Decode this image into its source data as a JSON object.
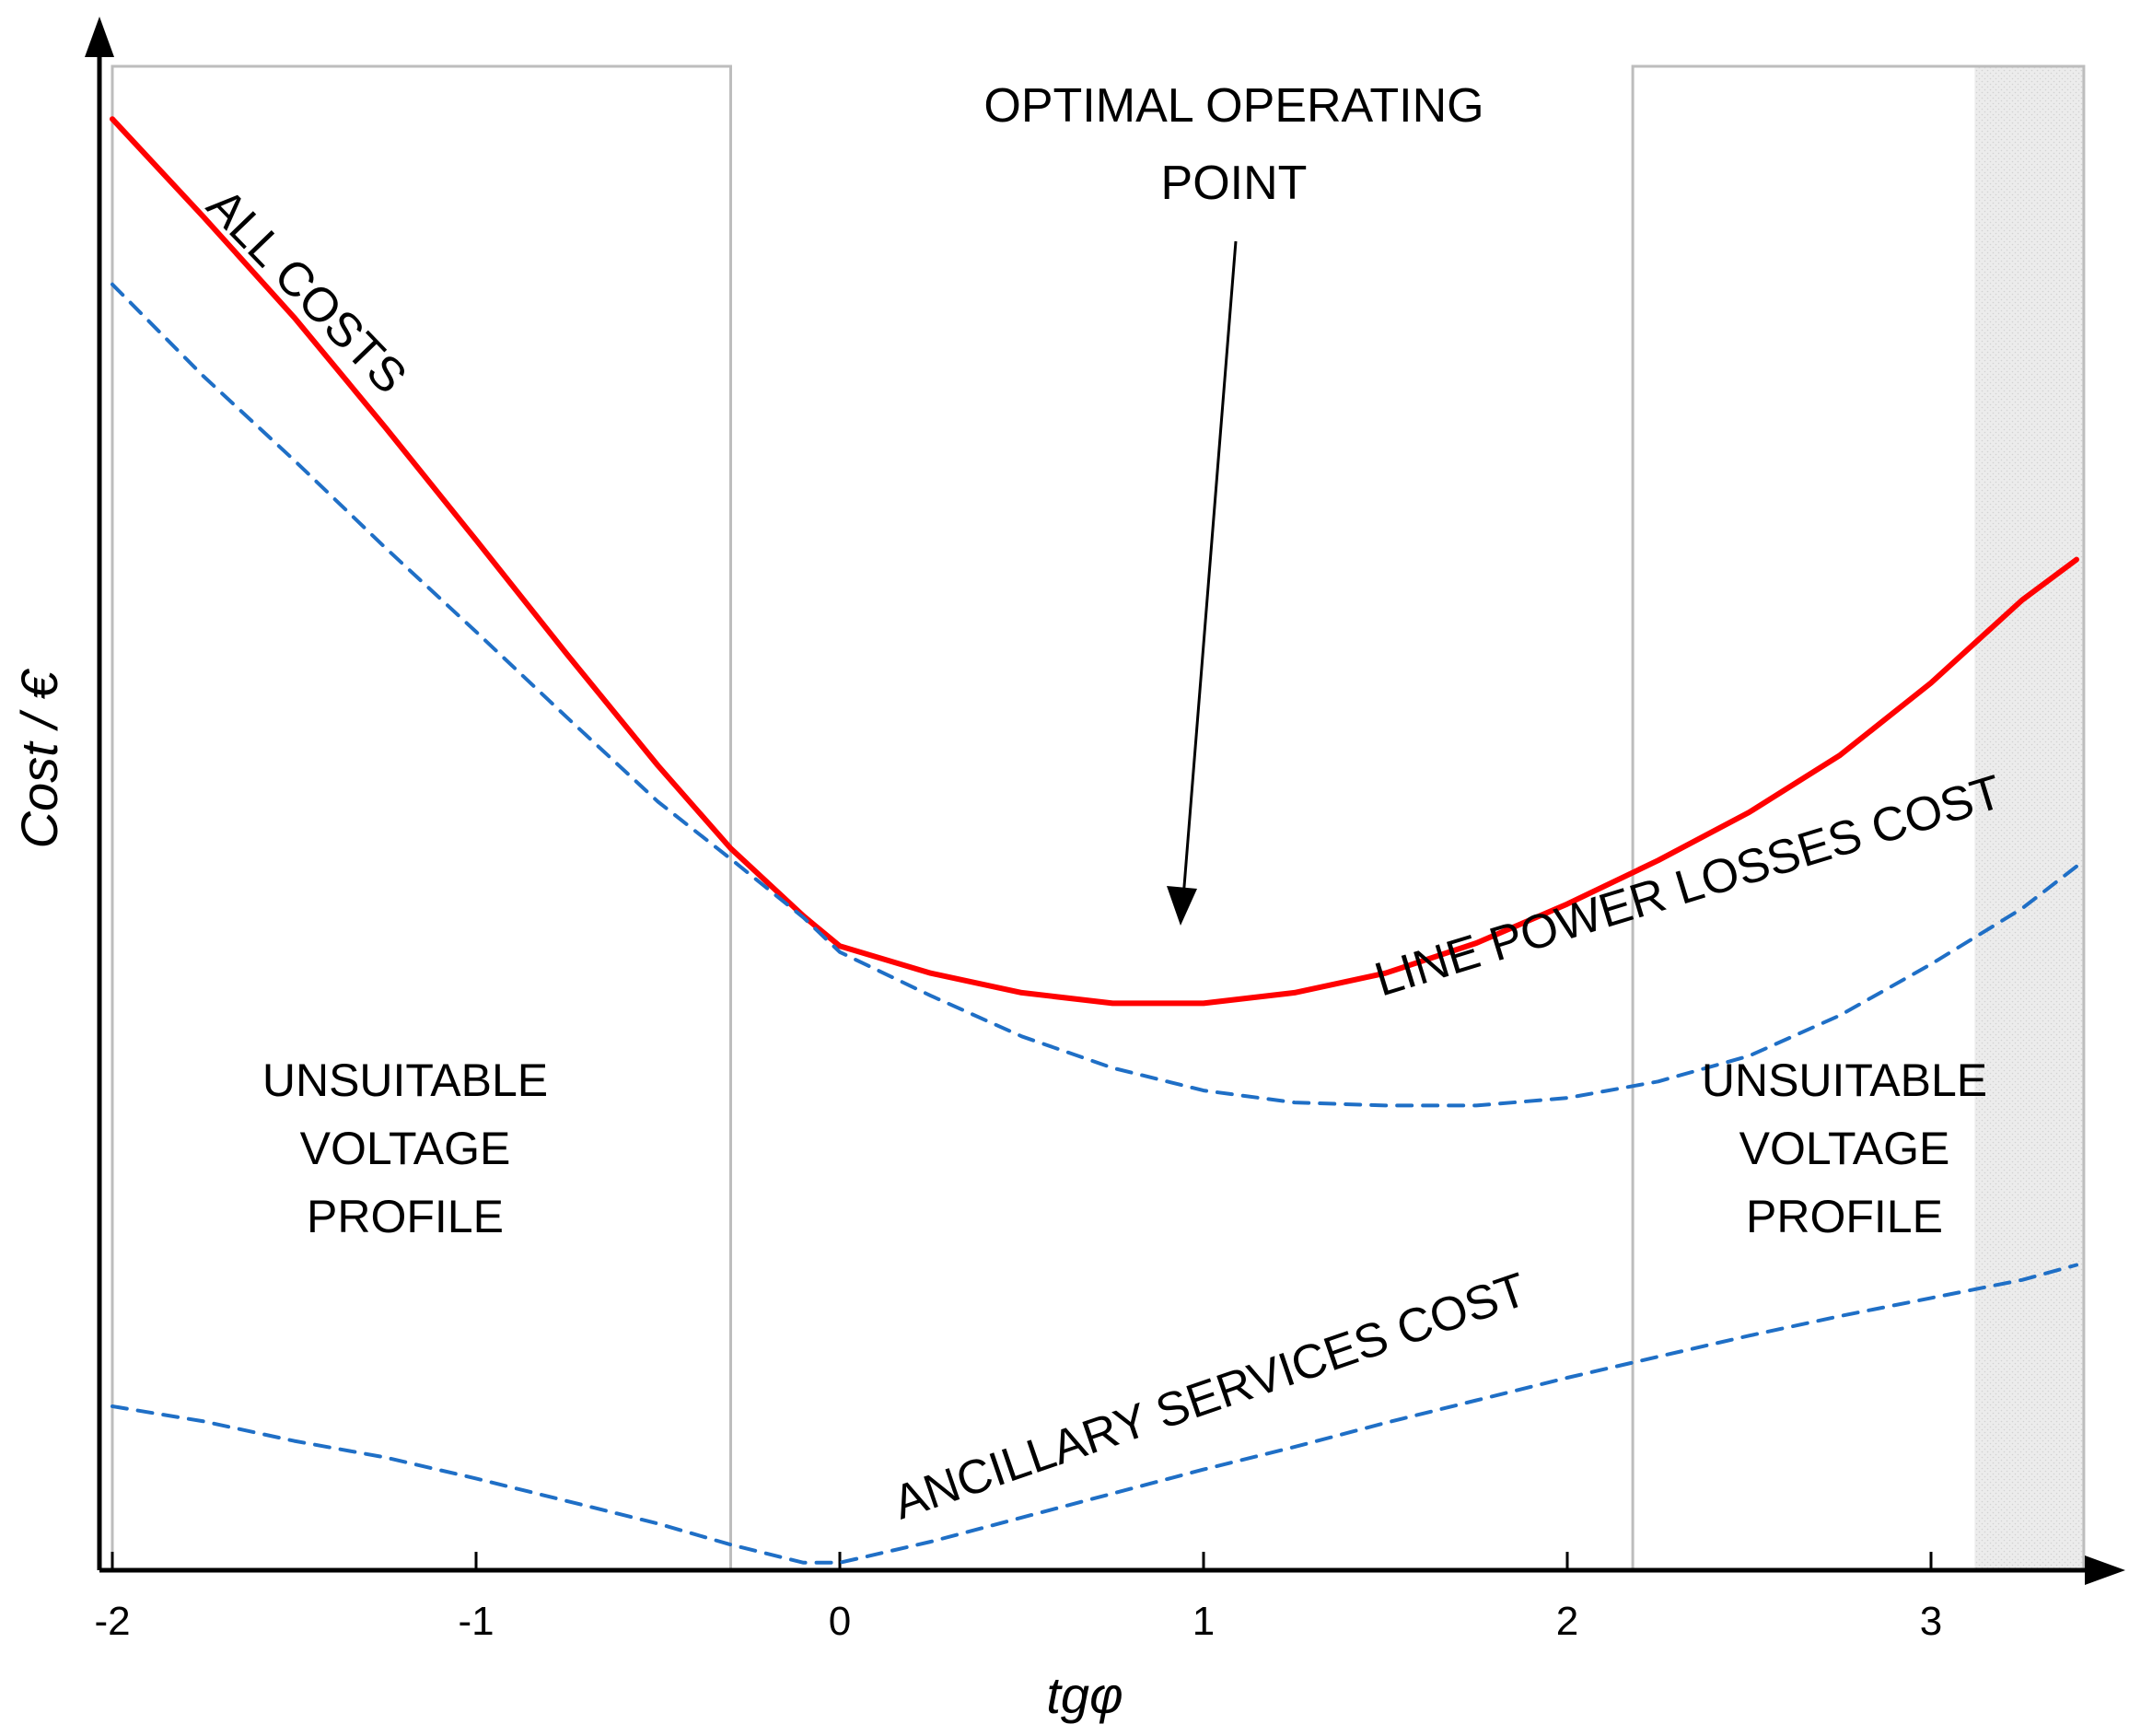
{
  "chart_data": {
    "type": "line",
    "xlabel": "tgφ",
    "ylabel": "Cost / €",
    "xlim": [
      -2,
      3.45
    ],
    "ylim": [
      0,
      100
    ],
    "x_ticks": [
      -2,
      -1,
      0,
      1,
      2,
      3
    ],
    "grid": false,
    "series": [
      {
        "name": "ALL COSTS",
        "style": "solid",
        "color": "#ff0000",
        "x": [
          -2.0,
          -1.75,
          -1.5,
          -1.25,
          -1.0,
          -0.75,
          -0.5,
          -0.3,
          -0.1,
          0.0,
          0.25,
          0.5,
          0.75,
          1.0,
          1.25,
          1.5,
          1.75,
          2.0,
          2.25,
          2.5,
          2.75,
          3.0,
          3.25,
          3.4
        ],
        "y": [
          96.5,
          90.0,
          83.3,
          76.0,
          68.5,
          60.9,
          53.5,
          48.0,
          43.5,
          41.5,
          39.7,
          38.4,
          37.7,
          37.7,
          38.4,
          39.7,
          41.7,
          44.3,
          47.2,
          50.4,
          54.2,
          59.0,
          64.5,
          67.2
        ]
      },
      {
        "name": "LINE POWER LOSSES COST",
        "style": "dashed",
        "color": "#1f6fc6",
        "x": [
          -2.0,
          -1.75,
          -1.5,
          -1.25,
          -1.0,
          -0.75,
          -0.5,
          -0.3,
          -0.1,
          0.0,
          0.25,
          0.5,
          0.75,
          1.0,
          1.25,
          1.5,
          1.75,
          2.0,
          2.25,
          2.5,
          2.75,
          3.0,
          3.25,
          3.4
        ],
        "y": [
          85.5,
          79.4,
          73.8,
          68.0,
          62.4,
          56.7,
          51.1,
          47.3,
          43.4,
          41.1,
          38.2,
          35.5,
          33.4,
          31.9,
          31.1,
          30.9,
          30.9,
          31.4,
          32.5,
          34.2,
          36.9,
          40.3,
          44.0,
          46.8
        ]
      },
      {
        "name": "ANCILLARY SERVICES COST",
        "style": "dashed",
        "color": "#1f6fc6",
        "x": [
          -2.0,
          -1.75,
          -1.5,
          -1.25,
          -1.0,
          -0.75,
          -0.5,
          -0.3,
          -0.1,
          0.0,
          0.25,
          0.5,
          0.75,
          1.0,
          1.25,
          1.5,
          1.75,
          2.0,
          2.25,
          2.5,
          2.75,
          3.0,
          3.25,
          3.4
        ],
        "y": [
          10.9,
          9.9,
          8.6,
          7.5,
          6.1,
          4.6,
          3.1,
          1.7,
          0.5,
          0.5,
          1.9,
          3.5,
          5.1,
          6.7,
          8.2,
          9.8,
          11.3,
          12.8,
          14.2,
          15.6,
          16.9,
          18.1,
          19.3,
          20.3
        ]
      }
    ],
    "shaded_regions": [
      {
        "x_from": -2.0,
        "x_to": -0.3,
        "label_lines": [
          "UNSUITABLE",
          "VOLTAGE",
          "PROFILE"
        ]
      },
      {
        "x_from": 2.18,
        "x_to": 3.42,
        "label_lines": [
          "UNSUITABLE",
          "VOLTAGE",
          "PROFILE"
        ],
        "hatched_from": 3.12
      }
    ],
    "annotations": {
      "optimal_point": {
        "text_lines": [
          "OPTIMAL OPERATING",
          "POINT"
        ],
        "x": 0.97,
        "y": 37.7
      },
      "series_labels": [
        "ALL COSTS",
        "LINE POWER LOSSES COST",
        "ANCILLARY SERVICES COST"
      ]
    }
  }
}
